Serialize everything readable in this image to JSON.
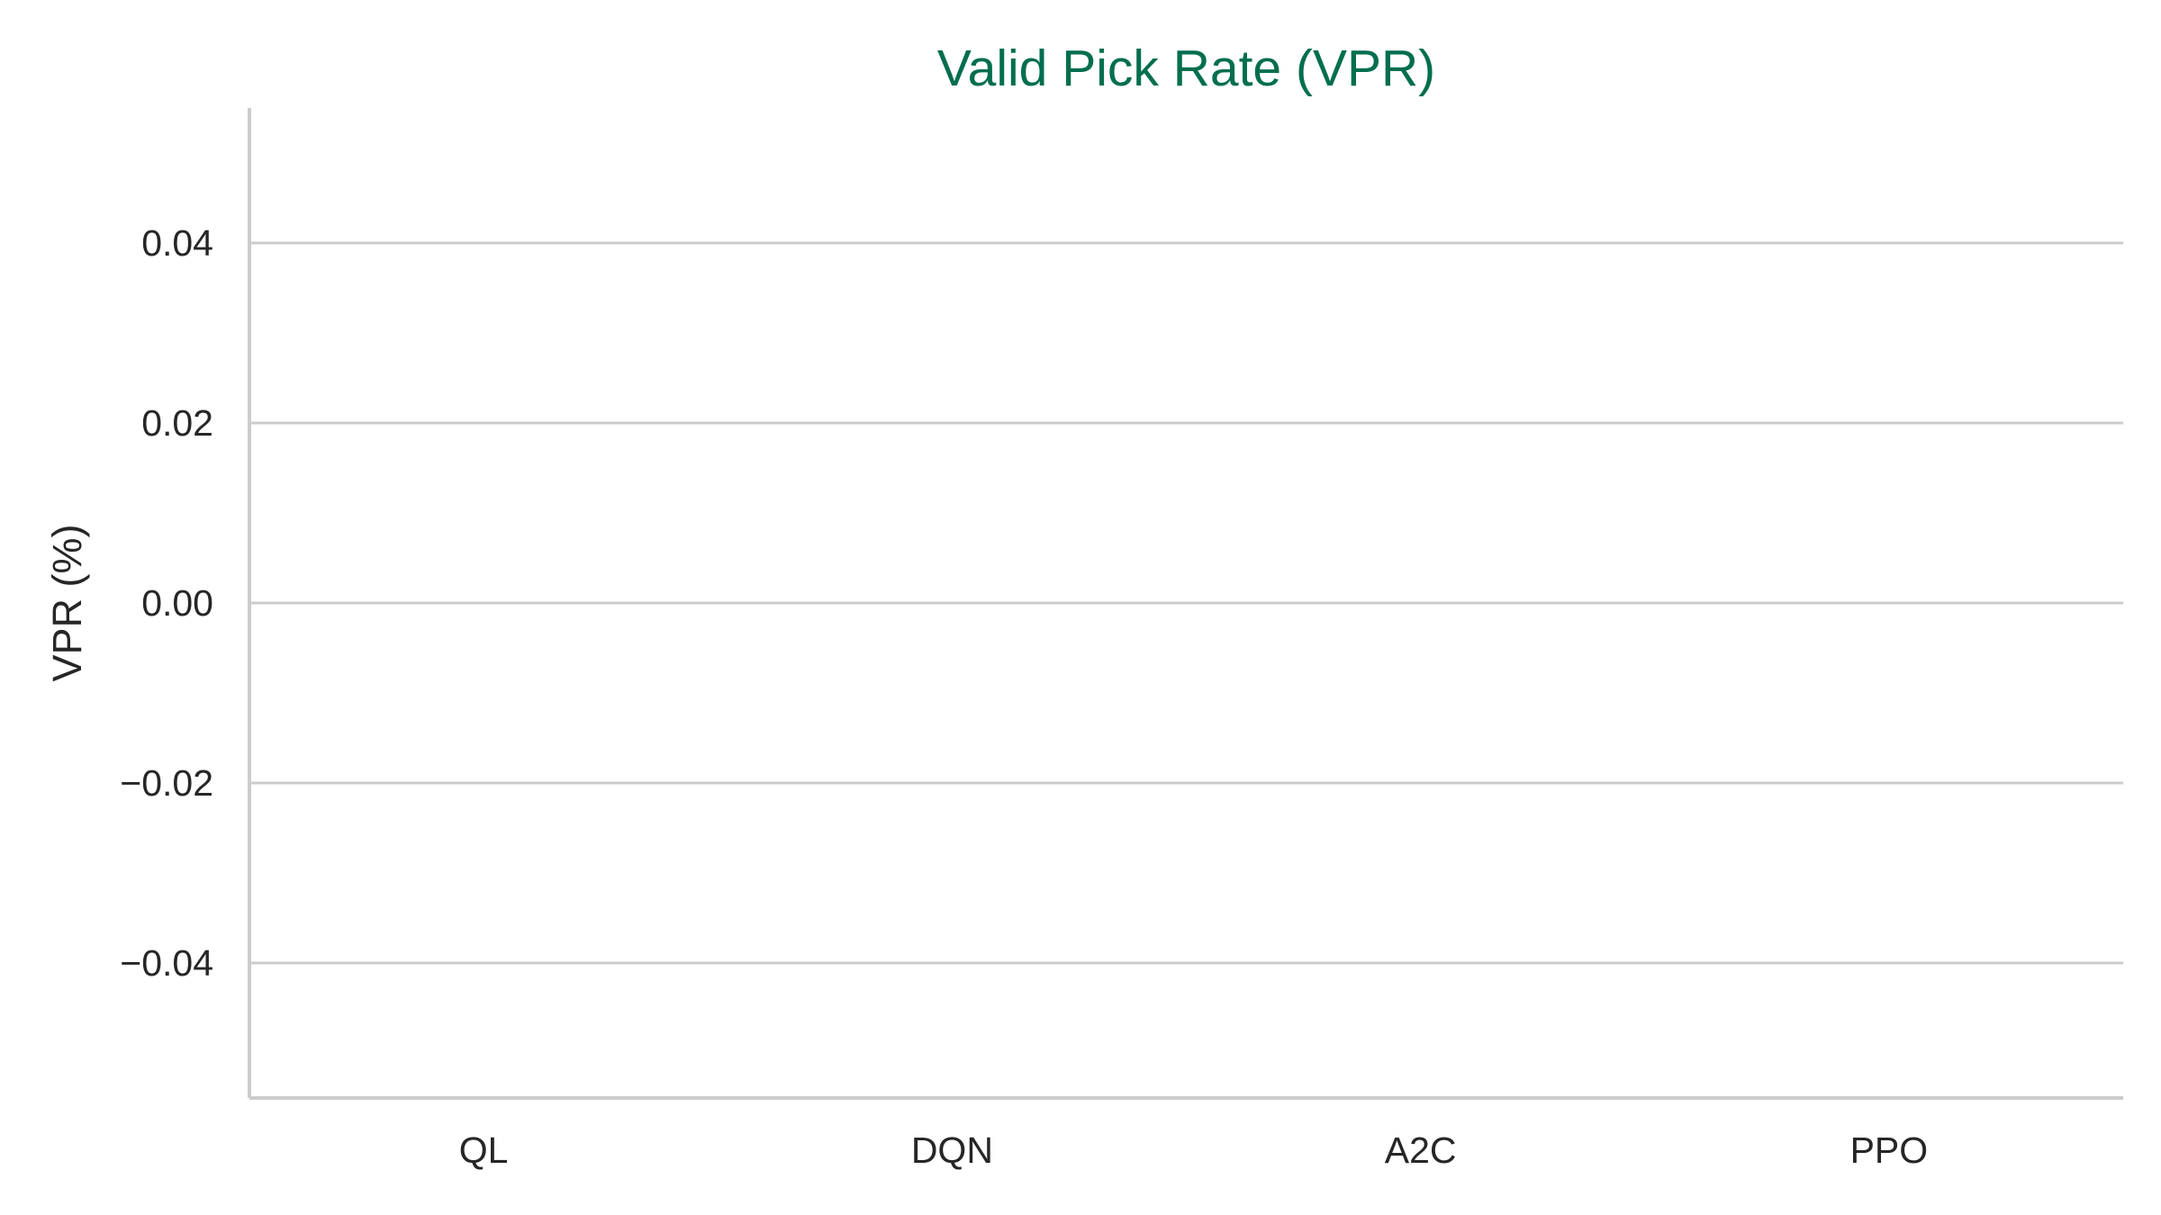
{
  "chart_data": {
    "type": "bar",
    "title": "Valid Pick Rate (VPR)",
    "xlabel": "",
    "ylabel": "VPR (%)",
    "categories": [
      "QL",
      "DQN",
      "A2C",
      "PPO"
    ],
    "values": [
      0,
      0,
      0,
      0
    ],
    "ylim": [
      -0.055,
      0.055
    ],
    "yticks": [
      -0.04,
      -0.02,
      0.0,
      0.02,
      0.04
    ],
    "ytick_labels": [
      "−0.04",
      "−0.02",
      "0.00",
      "0.02",
      "0.04"
    ],
    "grid": "horizontal",
    "legend": "none"
  },
  "colors": {
    "title": "#006E4E",
    "text": "#262626",
    "grid": "#CCCCCC",
    "axis": "#CCCCCC"
  }
}
